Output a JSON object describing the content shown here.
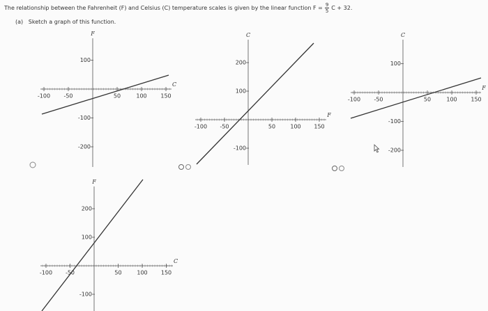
{
  "question": {
    "text_before": "The relationship between the Fahrenheit (F) and Celsius (C) temperature scales is given by the linear function F =",
    "numerator": "9",
    "denominator": "5",
    "text_after": "C + 32."
  },
  "part": {
    "label": "(a)",
    "text": "Sketch a graph of this function."
  },
  "graphs": [
    {
      "vertical_label": "F",
      "horizontal_label": "C",
      "x_ticks": [
        -100,
        -50,
        50,
        100,
        150
      ],
      "y_ticks": [
        100,
        -100,
        -200
      ]
    },
    {
      "vertical_label": "C",
      "horizontal_label": "F",
      "x_ticks": [
        -100,
        -50,
        50,
        100,
        150
      ],
      "y_ticks": [
        200,
        100,
        -100
      ]
    },
    {
      "vertical_label": "C",
      "horizontal_label": "F",
      "x_ticks": [
        -100,
        -50,
        50,
        100,
        150
      ],
      "y_ticks": [
        100,
        -100,
        -200
      ]
    },
    {
      "vertical_label": "F",
      "horizontal_label": "C",
      "x_ticks": [
        -100,
        -50,
        50,
        100,
        150
      ],
      "y_ticks": [
        200,
        100,
        -100
      ]
    }
  ]
}
